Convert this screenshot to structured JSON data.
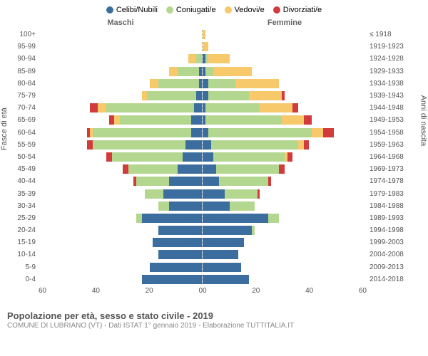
{
  "legend": [
    {
      "label": "Celibi/Nubili",
      "color": "#3b6e9e"
    },
    {
      "label": "Coniugati/e",
      "color": "#b4d78f"
    },
    {
      "label": "Vedovi/e",
      "color": "#f7c96b"
    },
    {
      "label": "Divorziati/e",
      "color": "#d13b3b"
    }
  ],
  "header": {
    "maschi": "Maschi",
    "femmine": "Femmine"
  },
  "y_label_left": "Fasce di età",
  "y_label_right": "Anni di nascita",
  "x_max": 60,
  "x_ticks_left": [
    "60",
    "40",
    "20",
    "0"
  ],
  "x_ticks_right": [
    "0",
    "20",
    "40",
    "60"
  ],
  "colors": {
    "celibi": "#3b6e9e",
    "coniugati": "#b4d78f",
    "vedovi": "#f7c96b",
    "divorziati": "#d13b3b",
    "grid": "#dddddd",
    "bg": "#ffffff"
  },
  "rows": [
    {
      "age": "100+",
      "birth": "≤ 1918",
      "m": {
        "c": 0,
        "co": 0,
        "v": 0,
        "d": 0
      },
      "f": {
        "c": 0,
        "co": 0,
        "v": 1,
        "d": 0
      }
    },
    {
      "age": "95-99",
      "birth": "1919-1923",
      "m": {
        "c": 0,
        "co": 0,
        "v": 0,
        "d": 0
      },
      "f": {
        "c": 0,
        "co": 0,
        "v": 2,
        "d": 0
      }
    },
    {
      "age": "90-94",
      "birth": "1924-1928",
      "m": {
        "c": 0,
        "co": 2,
        "v": 3,
        "d": 0
      },
      "f": {
        "c": 1,
        "co": 1,
        "v": 8,
        "d": 0
      }
    },
    {
      "age": "85-89",
      "birth": "1929-1933",
      "m": {
        "c": 1,
        "co": 8,
        "v": 3,
        "d": 0
      },
      "f": {
        "c": 1,
        "co": 3,
        "v": 14,
        "d": 0
      }
    },
    {
      "age": "80-84",
      "birth": "1934-1938",
      "m": {
        "c": 1,
        "co": 15,
        "v": 3,
        "d": 0
      },
      "f": {
        "c": 2,
        "co": 10,
        "v": 16,
        "d": 0
      }
    },
    {
      "age": "75-79",
      "birth": "1939-1943",
      "m": {
        "c": 2,
        "co": 18,
        "v": 2,
        "d": 0
      },
      "f": {
        "c": 2,
        "co": 15,
        "v": 12,
        "d": 1
      }
    },
    {
      "age": "70-74",
      "birth": "1944-1948",
      "m": {
        "c": 3,
        "co": 32,
        "v": 3,
        "d": 3
      },
      "f": {
        "c": 1,
        "co": 20,
        "v": 12,
        "d": 2
      }
    },
    {
      "age": "65-69",
      "birth": "1949-1953",
      "m": {
        "c": 4,
        "co": 26,
        "v": 2,
        "d": 2
      },
      "f": {
        "c": 1,
        "co": 28,
        "v": 8,
        "d": 3
      }
    },
    {
      "age": "60-64",
      "birth": "1954-1958",
      "m": {
        "c": 4,
        "co": 36,
        "v": 1,
        "d": 1
      },
      "f": {
        "c": 2,
        "co": 38,
        "v": 4,
        "d": 4
      }
    },
    {
      "age": "55-59",
      "birth": "1959-1963",
      "m": {
        "c": 6,
        "co": 34,
        "v": 0,
        "d": 2
      },
      "f": {
        "c": 3,
        "co": 32,
        "v": 2,
        "d": 2
      }
    },
    {
      "age": "50-54",
      "birth": "1964-1968",
      "m": {
        "c": 7,
        "co": 26,
        "v": 0,
        "d": 2
      },
      "f": {
        "c": 4,
        "co": 26,
        "v": 1,
        "d": 2
      }
    },
    {
      "age": "45-49",
      "birth": "1969-1973",
      "m": {
        "c": 9,
        "co": 18,
        "v": 0,
        "d": 2
      },
      "f": {
        "c": 5,
        "co": 23,
        "v": 0,
        "d": 2
      }
    },
    {
      "age": "40-44",
      "birth": "1974-1978",
      "m": {
        "c": 12,
        "co": 12,
        "v": 0,
        "d": 1
      },
      "f": {
        "c": 6,
        "co": 18,
        "v": 0,
        "d": 1
      }
    },
    {
      "age": "35-39",
      "birth": "1979-1983",
      "m": {
        "c": 14,
        "co": 7,
        "v": 0,
        "d": 0
      },
      "f": {
        "c": 8,
        "co": 12,
        "v": 0,
        "d": 1
      }
    },
    {
      "age": "30-34",
      "birth": "1984-1988",
      "m": {
        "c": 12,
        "co": 4,
        "v": 0,
        "d": 0
      },
      "f": {
        "c": 10,
        "co": 9,
        "v": 0,
        "d": 0
      }
    },
    {
      "age": "25-29",
      "birth": "1989-1993",
      "m": {
        "c": 22,
        "co": 2,
        "v": 0,
        "d": 0
      },
      "f": {
        "c": 24,
        "co": 4,
        "v": 0,
        "d": 0
      }
    },
    {
      "age": "20-24",
      "birth": "1994-1998",
      "m": {
        "c": 16,
        "co": 0,
        "v": 0,
        "d": 0
      },
      "f": {
        "c": 18,
        "co": 1,
        "v": 0,
        "d": 0
      }
    },
    {
      "age": "15-19",
      "birth": "1999-2003",
      "m": {
        "c": 18,
        "co": 0,
        "v": 0,
        "d": 0
      },
      "f": {
        "c": 15,
        "co": 0,
        "v": 0,
        "d": 0
      }
    },
    {
      "age": "10-14",
      "birth": "2004-2008",
      "m": {
        "c": 16,
        "co": 0,
        "v": 0,
        "d": 0
      },
      "f": {
        "c": 13,
        "co": 0,
        "v": 0,
        "d": 0
      }
    },
    {
      "age": "5-9",
      "birth": "2009-2013",
      "m": {
        "c": 19,
        "co": 0,
        "v": 0,
        "d": 0
      },
      "f": {
        "c": 14,
        "co": 0,
        "v": 0,
        "d": 0
      }
    },
    {
      "age": "0-4",
      "birth": "2014-2018",
      "m": {
        "c": 22,
        "co": 0,
        "v": 0,
        "d": 0
      },
      "f": {
        "c": 17,
        "co": 0,
        "v": 0,
        "d": 0
      }
    }
  ],
  "footer": {
    "title": "Popolazione per età, sesso e stato civile - 2019",
    "sub": "COMUNE DI LUBRIANO (VT) - Dati ISTAT 1° gennaio 2019 - Elaborazione TUTTITALIA.IT"
  }
}
